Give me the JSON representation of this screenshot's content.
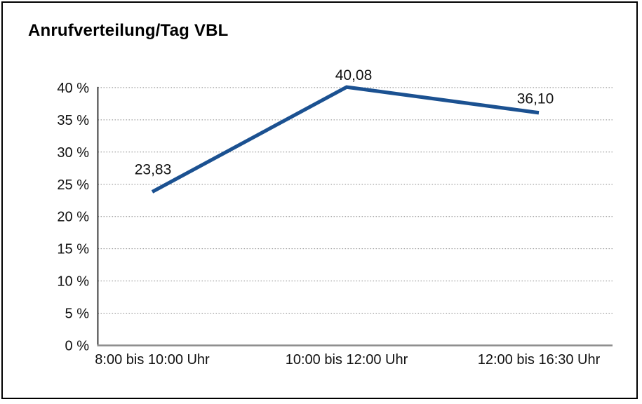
{
  "chart_data": {
    "type": "line",
    "title": "Anrufverteilung/Tag VBL",
    "categories": [
      "8:00 bis 10:00 Uhr",
      "10:00 bis 12:00 Uhr",
      "12:00 bis 16:30 Uhr"
    ],
    "series": [
      {
        "name": "Anrufverteilung/Tag VBL",
        "values": [
          23.83,
          40.08,
          36.1
        ],
        "data_labels": [
          "23,83",
          "40,08",
          "36,10"
        ]
      }
    ],
    "xlabel": "",
    "ylabel": "",
    "ylim": [
      0,
      40
    ],
    "ytick_step": 5,
    "ytick_labels": [
      "0 %",
      "5 %",
      "10 %",
      "15 %",
      "20 %",
      "25 %",
      "30 %",
      "35 %",
      "40 %"
    ],
    "grid": "horizontal-dotted",
    "legend": "none",
    "colors": {
      "line": "#1B5191",
      "gridline": "#8C8C8C",
      "y_axis": "#1A1A1A",
      "x_axis": "#8C8C8C",
      "text": "#111111",
      "background": "#FFFFFF",
      "frame_border": "#000000"
    }
  }
}
